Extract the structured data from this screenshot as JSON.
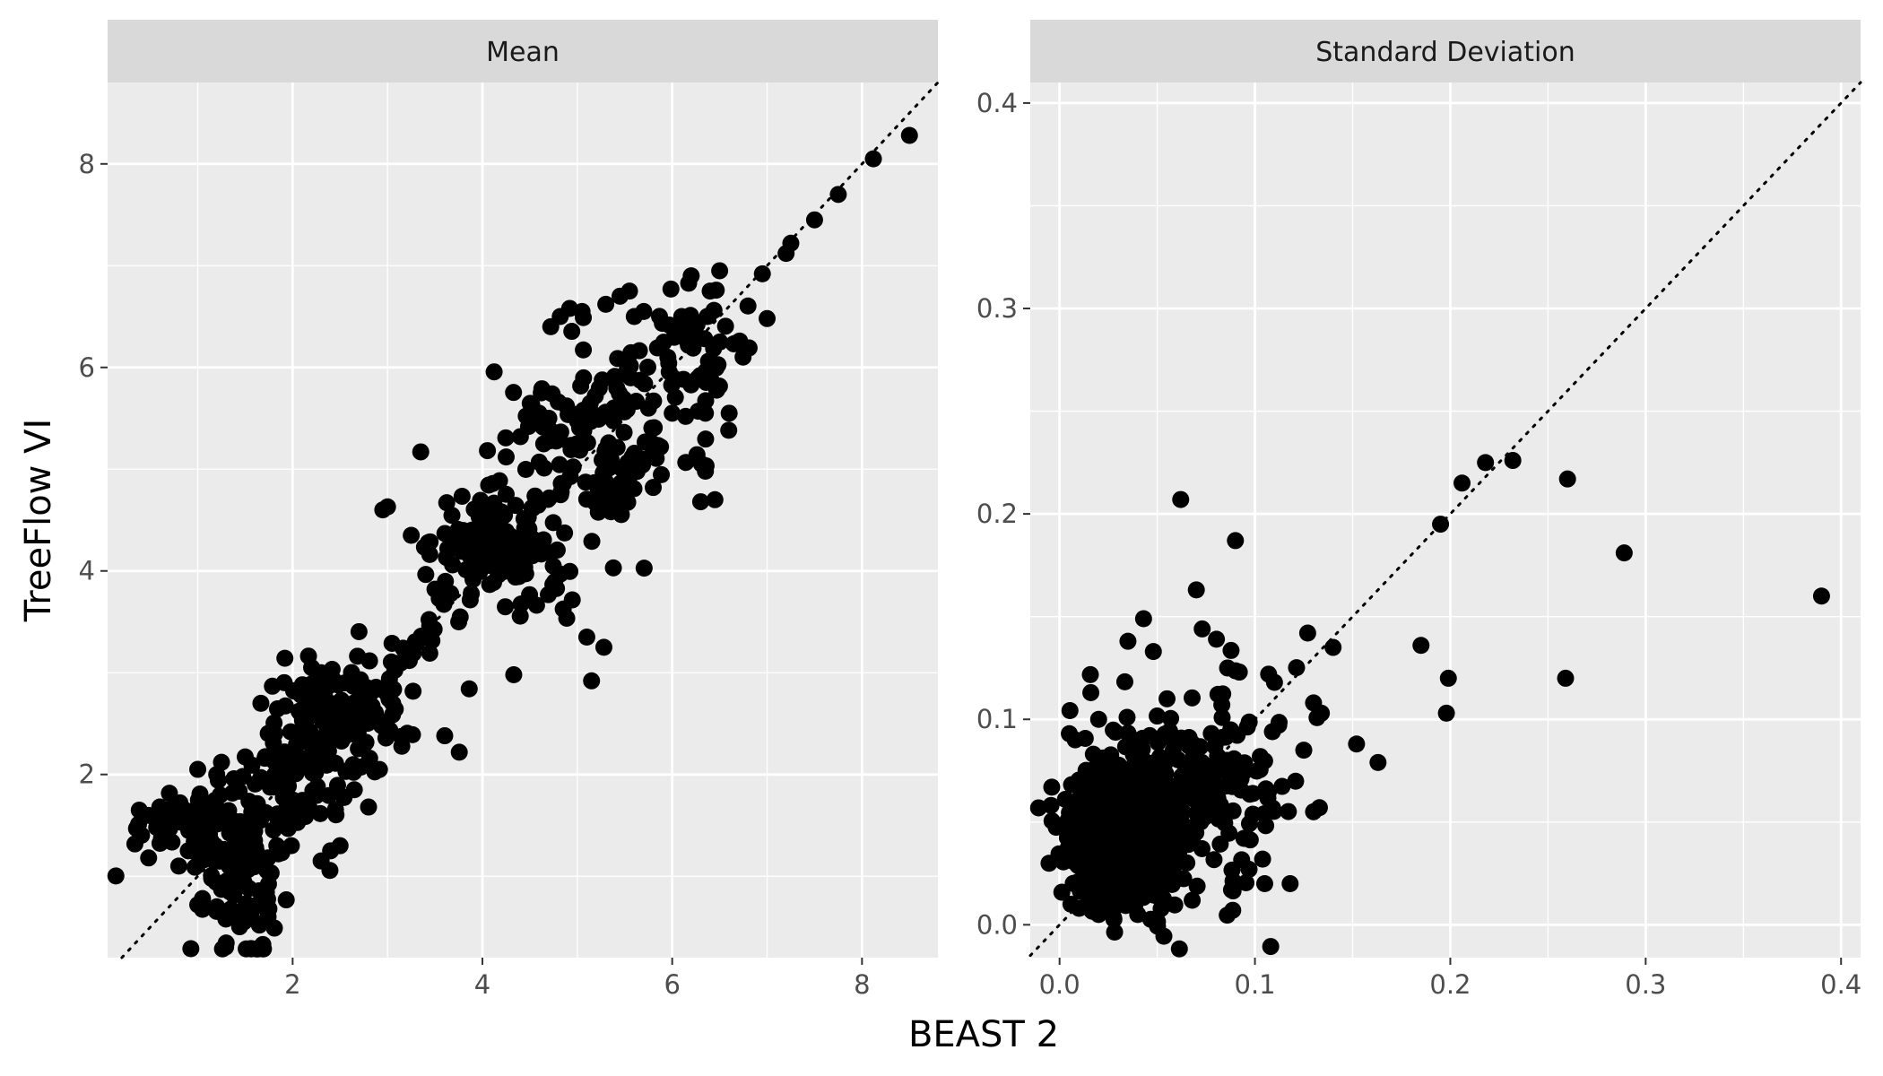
{
  "figure": {
    "xlabel": "BEAST 2",
    "ylabel": "TreeFlow VI"
  },
  "colors": {
    "panel_background": "#ebebeb",
    "strip_background": "#d9d9d9",
    "grid": "#ffffff",
    "points": "#000000",
    "reference_line": "#000000"
  },
  "chart_data": [
    {
      "type": "scatter",
      "facet_title": "Mean",
      "xlabel": "BEAST 2",
      "ylabel": "TreeFlow VI",
      "xlim": [
        0.05,
        8.8
      ],
      "ylim": [
        0.2,
        8.8
      ],
      "xticks": [
        2,
        4,
        6,
        8
      ],
      "yticks": [
        2,
        4,
        6,
        8
      ],
      "grid": true,
      "reference_line": "y = x (dotted)",
      "clusters": [
        {
          "center": [
            1.0,
            1.5
          ],
          "spread": [
            0.45,
            0.18
          ],
          "n": 70
        },
        {
          "center": [
            1.5,
            1.0
          ],
          "spread": [
            0.22,
            0.35
          ],
          "n": 90
        },
        {
          "center": [
            1.9,
            1.8
          ],
          "spread": [
            0.3,
            0.4
          ],
          "n": 70
        },
        {
          "center": [
            2.4,
            2.5
          ],
          "spread": [
            0.35,
            0.3
          ],
          "n": 90
        },
        {
          "center": [
            3.0,
            2.8
          ],
          "spread": [
            0.4,
            0.3
          ],
          "n": 40
        },
        {
          "center": [
            4.1,
            4.3
          ],
          "spread": [
            0.3,
            0.25
          ],
          "n": 110
        },
        {
          "center": [
            4.8,
            5.4
          ],
          "spread": [
            0.35,
            0.3
          ],
          "n": 45
        },
        {
          "center": [
            5.5,
            5.5
          ],
          "spread": [
            0.4,
            0.5
          ],
          "n": 70
        },
        {
          "center": [
            6.3,
            6.1
          ],
          "spread": [
            0.3,
            0.35
          ],
          "n": 55
        },
        {
          "center": [
            4.6,
            3.9
          ],
          "spread": [
            0.2,
            0.25
          ],
          "n": 20
        },
        {
          "center": [
            5.4,
            4.8
          ],
          "spread": [
            0.15,
            0.15
          ],
          "n": 20
        }
      ],
      "diagonal_points": {
        "from": 2.0,
        "to": 5.0,
        "step": 0.07,
        "jitter": 0.06
      },
      "points": [
        [
          0.6,
          1.68
        ],
        [
          0.65,
          1.62
        ],
        [
          0.75,
          1.7
        ],
        [
          0.85,
          1.66
        ],
        [
          0.95,
          1.64
        ],
        [
          1.05,
          1.6
        ],
        [
          0.8,
          1.1
        ],
        [
          0.9,
          1.25
        ],
        [
          1.0,
          0.72
        ],
        [
          1.05,
          0.78
        ],
        [
          1.2,
          0.7
        ],
        [
          1.4,
          0.65
        ],
        [
          1.55,
          0.6
        ],
        [
          1.65,
          0.52
        ],
        [
          1.75,
          0.68
        ],
        [
          1.2,
          2.0
        ],
        [
          1.0,
          2.05
        ],
        [
          1.25,
          2.12
        ],
        [
          1.6,
          1.5
        ],
        [
          1.85,
          1.22
        ],
        [
          2.3,
          1.15
        ],
        [
          2.4,
          1.25
        ],
        [
          2.5,
          1.3
        ],
        [
          2.8,
          1.68
        ],
        [
          2.65,
          1.85
        ],
        [
          2.2,
          3.05
        ],
        [
          2.3,
          3.0
        ],
        [
          2.55,
          2.9
        ],
        [
          2.95,
          4.6
        ],
        [
          3.0,
          4.63
        ],
        [
          3.25,
          4.35
        ],
        [
          3.35,
          5.17
        ],
        [
          3.5,
          3.82
        ],
        [
          3.75,
          3.5
        ],
        [
          3.8,
          4.3
        ],
        [
          4.2,
          4.58
        ],
        [
          4.25,
          5.12
        ],
        [
          4.4,
          5.32
        ],
        [
          4.33,
          2.98
        ],
        [
          4.62,
          5.75
        ],
        [
          4.72,
          6.4
        ],
        [
          4.7,
          5.5
        ],
        [
          4.82,
          6.5
        ],
        [
          4.92,
          6.58
        ],
        [
          5.05,
          6.55
        ],
        [
          5.1,
          3.35
        ],
        [
          5.15,
          2.92
        ],
        [
          5.28,
          3.25
        ],
        [
          5.3,
          6.62
        ],
        [
          5.38,
          4.03
        ],
        [
          5.45,
          6.7
        ],
        [
          5.55,
          6.75
        ],
        [
          5.6,
          6.5
        ],
        [
          5.7,
          6.55
        ],
        [
          5.8,
          4.82
        ],
        [
          5.75,
          5.6
        ],
        [
          6.0,
          5.55
        ],
        [
          6.1,
          6.5
        ],
        [
          6.2,
          6.9
        ],
        [
          6.35,
          5.55
        ],
        [
          6.4,
          6.75
        ],
        [
          6.5,
          6.95
        ],
        [
          6.6,
          5.55
        ],
        [
          6.3,
          4.68
        ],
        [
          6.45,
          4.7
        ],
        [
          6.35,
          4.98
        ],
        [
          6.95,
          6.92
        ],
        [
          7.0,
          6.48
        ],
        [
          7.2,
          7.12
        ],
        [
          7.25,
          7.22
        ],
        [
          7.5,
          7.45
        ],
        [
          7.75,
          7.7
        ],
        [
          8.12,
          8.05
        ],
        [
          8.5,
          8.28
        ]
      ]
    },
    {
      "type": "scatter",
      "facet_title": "Standard Deviation",
      "xlabel": "BEAST 2",
      "ylabel": "TreeFlow VI",
      "xlim": [
        -0.015,
        0.41
      ],
      "ylim": [
        -0.016,
        0.41
      ],
      "xticks": [
        0.0,
        0.1,
        0.2,
        0.3,
        0.4
      ],
      "yticks": [
        0.0,
        0.1,
        0.2,
        0.3,
        0.4
      ],
      "grid": true,
      "reference_line": "y = x (dotted)",
      "clusters": [
        {
          "center": [
            0.035,
            0.045
          ],
          "spread": [
            0.016,
            0.018
          ],
          "n": 380
        },
        {
          "center": [
            0.06,
            0.06
          ],
          "spread": [
            0.022,
            0.025
          ],
          "n": 160
        },
        {
          "center": [
            0.09,
            0.075
          ],
          "spread": [
            0.02,
            0.025
          ],
          "n": 60
        },
        {
          "center": [
            0.02,
            0.03
          ],
          "spread": [
            0.008,
            0.012
          ],
          "n": 120
        }
      ],
      "points": [
        [
          0.005,
          0.093
        ],
        [
          0.008,
          0.09
        ],
        [
          0.016,
          0.113
        ],
        [
          0.02,
          0.1
        ],
        [
          0.035,
          0.138
        ],
        [
          0.043,
          0.149
        ],
        [
          0.048,
          0.133
        ],
        [
          0.055,
          0.11
        ],
        [
          0.062,
          0.207
        ],
        [
          0.07,
          0.163
        ],
        [
          0.073,
          0.144
        ],
        [
          0.09,
          0.187
        ],
        [
          0.086,
          0.125
        ],
        [
          0.092,
          0.123
        ],
        [
          0.107,
          0.122
        ],
        [
          0.11,
          0.118
        ],
        [
          0.127,
          0.142
        ],
        [
          0.13,
          0.108
        ],
        [
          0.134,
          0.103
        ],
        [
          0.14,
          0.135
        ],
        [
          0.152,
          0.088
        ],
        [
          0.163,
          0.079
        ],
        [
          0.125,
          0.085
        ],
        [
          0.133,
          0.057
        ],
        [
          0.13,
          0.055
        ],
        [
          0.118,
          0.02
        ],
        [
          0.105,
          0.02
        ],
        [
          0.097,
          0.027
        ],
        [
          0.088,
          0.017
        ],
        [
          0.185,
          0.136
        ],
        [
          0.195,
          0.195
        ],
        [
          0.199,
          0.12
        ],
        [
          0.198,
          0.103
        ],
        [
          0.206,
          0.215
        ],
        [
          0.218,
          0.225
        ],
        [
          0.232,
          0.226
        ],
        [
          0.259,
          0.12
        ],
        [
          0.26,
          0.217
        ],
        [
          0.289,
          0.181
        ],
        [
          0.39,
          0.16
        ],
        [
          0.01,
          0.008
        ],
        [
          0.02,
          0.005
        ],
        [
          0.04,
          0.005
        ],
        [
          0.035,
          0.01
        ]
      ]
    }
  ]
}
